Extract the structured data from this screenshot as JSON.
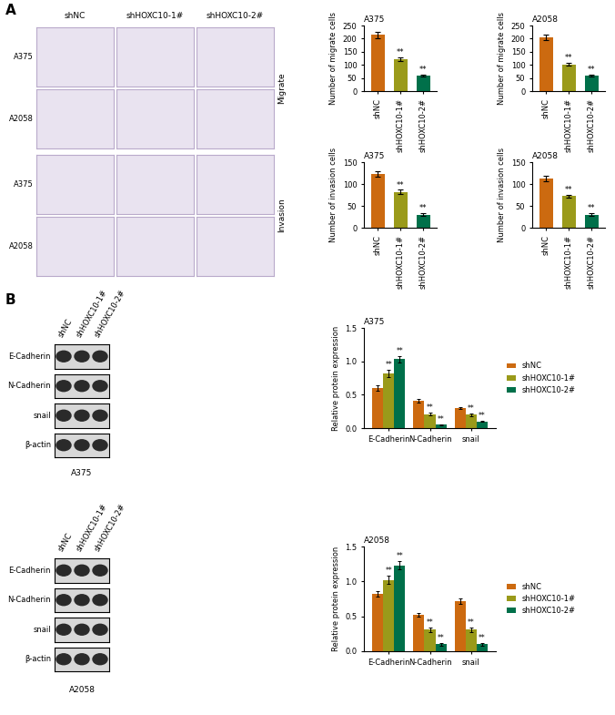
{
  "figure": {
    "panel_labels": [
      "A",
      "B"
    ]
  },
  "images": {
    "columns": [
      "shNC",
      "shHOXC10-1#",
      "shHOXC10-2#"
    ],
    "rows": [
      "A375",
      "A2058",
      "A375",
      "A2058"
    ],
    "groups": [
      "Migrate",
      "Invasion"
    ]
  },
  "blots": [
    {
      "caption": "A375",
      "lanes": [
        "shNC",
        "shHOXC10-1#",
        "shHOXC10-2#"
      ],
      "bands": [
        "E-Cadherin",
        "N-Cadherin",
        "snail",
        "β-actin"
      ]
    },
    {
      "caption": "A2058",
      "lanes": [
        "shNC",
        "shHOXC10-1#",
        "shHOXC10-2#"
      ],
      "bands": [
        "E-Cadherin",
        "N-Cadherin",
        "snail",
        "β-actin"
      ]
    }
  ],
  "chart_data": [
    {
      "type": "bar",
      "title": "A375",
      "y_label": "Number of migrate cells",
      "categories": [
        "shNC",
        "shHOXC10-1#",
        "shHOXC10-2#"
      ],
      "values": [
        215,
        122,
        60
      ],
      "errors": [
        12,
        6,
        4
      ],
      "significance": [
        null,
        "**",
        "**"
      ],
      "colors": [
        "#cc6a10",
        "#9a9a1a",
        "#00704a"
      ],
      "ylim": [
        0,
        250
      ],
      "yticks": [
        0,
        50,
        100,
        150,
        200,
        250
      ]
    },
    {
      "type": "bar",
      "title": "A2058",
      "y_label": "Number of migrate cells",
      "categories": [
        "shNC",
        "shHOXC10-1#",
        "shHOXC10-2#"
      ],
      "values": [
        205,
        102,
        60
      ],
      "errors": [
        12,
        6,
        4
      ],
      "significance": [
        null,
        "**",
        "**"
      ],
      "colors": [
        "#cc6a10",
        "#9a9a1a",
        "#00704a"
      ],
      "ylim": [
        0,
        250
      ],
      "yticks": [
        0,
        50,
        100,
        150,
        200,
        250
      ]
    },
    {
      "type": "bar",
      "title": "A375",
      "y_label": "Number of invasion cells",
      "categories": [
        "shNC",
        "shHOXC10-1#",
        "shHOXC10-2#"
      ],
      "values": [
        123,
        82,
        30
      ],
      "errors": [
        7,
        5,
        3
      ],
      "significance": [
        null,
        "**",
        "**"
      ],
      "colors": [
        "#cc6a10",
        "#9a9a1a",
        "#00704a"
      ],
      "ylim": [
        0,
        150
      ],
      "yticks": [
        0,
        50,
        100,
        150
      ]
    },
    {
      "type": "bar",
      "title": "A2058",
      "y_label": "Number of invasion cells",
      "categories": [
        "shNC",
        "shHOXC10-1#",
        "shHOXC10-2#"
      ],
      "values": [
        112,
        72,
        30
      ],
      "errors": [
        6,
        4,
        3
      ],
      "significance": [
        null,
        "**",
        "**"
      ],
      "colors": [
        "#cc6a10",
        "#9a9a1a",
        "#00704a"
      ],
      "ylim": [
        0,
        150
      ],
      "yticks": [
        0,
        50,
        100,
        150
      ]
    },
    {
      "type": "bar",
      "title": "A375",
      "y_label": "Relative protein expression",
      "categories": [
        "E-Cadherin",
        "N-Cadherin",
        "snail"
      ],
      "series": [
        {
          "name": "shNC",
          "color": "#cc6a10",
          "values": [
            0.6,
            0.41,
            0.3
          ],
          "errors": [
            0.04,
            0.03,
            0.02
          ],
          "significance": [
            null,
            null,
            null
          ]
        },
        {
          "name": "shHOXC10-1#",
          "color": "#9a9a1a",
          "values": [
            0.82,
            0.21,
            0.2
          ],
          "errors": [
            0.05,
            0.02,
            0.02
          ],
          "significance": [
            "**",
            "**",
            "**"
          ]
        },
        {
          "name": "shHOXC10-2#",
          "color": "#00704a",
          "values": [
            1.03,
            0.05,
            0.1
          ],
          "errors": [
            0.05,
            0.01,
            0.01
          ],
          "significance": [
            "**",
            "**",
            "**"
          ]
        }
      ],
      "ylim": [
        0,
        1.5
      ],
      "yticks": [
        {
          "value": 0,
          "label": "0.0"
        },
        {
          "value": 0.5,
          "label": "0.5"
        },
        {
          "value": 1.0,
          "label": "1.0"
        },
        {
          "value": 1.5,
          "label": "1.5"
        }
      ],
      "legend": "center left"
    },
    {
      "type": "bar",
      "title": "A2058",
      "y_label": "Relative protein expression",
      "categories": [
        "E-Cadherin",
        "N-Cadherin",
        "snail"
      ],
      "series": [
        {
          "name": "shNC",
          "color": "#cc6a10",
          "values": [
            0.82,
            0.52,
            0.72
          ],
          "errors": [
            0.04,
            0.03,
            0.04
          ],
          "significance": [
            null,
            null,
            null
          ]
        },
        {
          "name": "shHOXC10-1#",
          "color": "#9a9a1a",
          "values": [
            1.02,
            0.31,
            0.31
          ],
          "errors": [
            0.06,
            0.03,
            0.03
          ],
          "significance": [
            "**",
            "**",
            "**"
          ]
        },
        {
          "name": "shHOXC10-2#",
          "color": "#00704a",
          "values": [
            1.23,
            0.1,
            0.1
          ],
          "errors": [
            0.06,
            0.02,
            0.02
          ],
          "significance": [
            "**",
            "**",
            "**"
          ]
        }
      ],
      "ylim": [
        0,
        1.5
      ],
      "yticks": [
        {
          "value": 0,
          "label": "0.0"
        },
        {
          "value": 0.5,
          "label": "0.5"
        },
        {
          "value": 1.0,
          "label": "1.0"
        },
        {
          "value": 1.5,
          "label": "1.5"
        }
      ],
      "legend": "center left"
    }
  ]
}
